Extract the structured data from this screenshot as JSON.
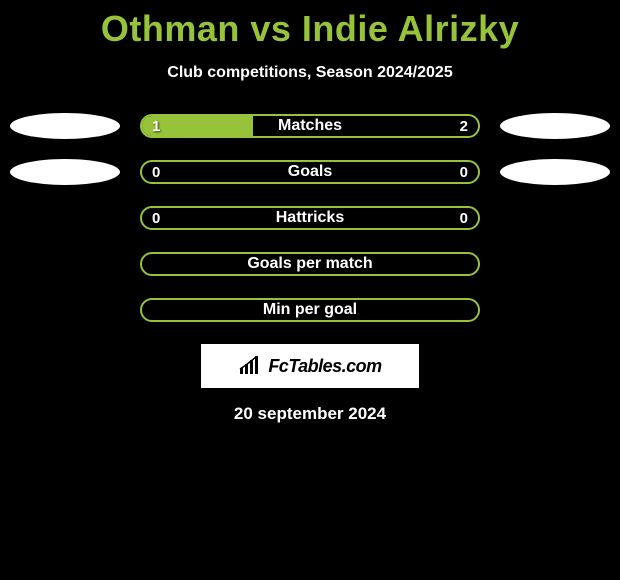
{
  "title": "Othman vs Indie Alrizky",
  "subtitle": "Club competitions, Season 2024/2025",
  "date": "20 september 2024",
  "branding": "FcTables.com",
  "colors": {
    "accent": "#97c33b",
    "background": "#000000",
    "text": "#ffffff",
    "ellipse": "#ffffff"
  },
  "rows": [
    {
      "label": "Matches",
      "left_value": "1",
      "right_value": "2",
      "show_left_ellipse": true,
      "show_right_ellipse": true,
      "left_fill_pct": 33,
      "right_fill_pct": 0
    },
    {
      "label": "Goals",
      "left_value": "0",
      "right_value": "0",
      "show_left_ellipse": true,
      "show_right_ellipse": true,
      "left_fill_pct": 0,
      "right_fill_pct": 0
    },
    {
      "label": "Hattricks",
      "left_value": "0",
      "right_value": "0",
      "show_left_ellipse": false,
      "show_right_ellipse": false,
      "left_fill_pct": 0,
      "right_fill_pct": 0
    },
    {
      "label": "Goals per match",
      "left_value": "",
      "right_value": "",
      "show_left_ellipse": false,
      "show_right_ellipse": false,
      "left_fill_pct": 0,
      "right_fill_pct": 0
    },
    {
      "label": "Min per goal",
      "left_value": "",
      "right_value": "",
      "show_left_ellipse": false,
      "show_right_ellipse": false,
      "left_fill_pct": 0,
      "right_fill_pct": 0
    }
  ]
}
